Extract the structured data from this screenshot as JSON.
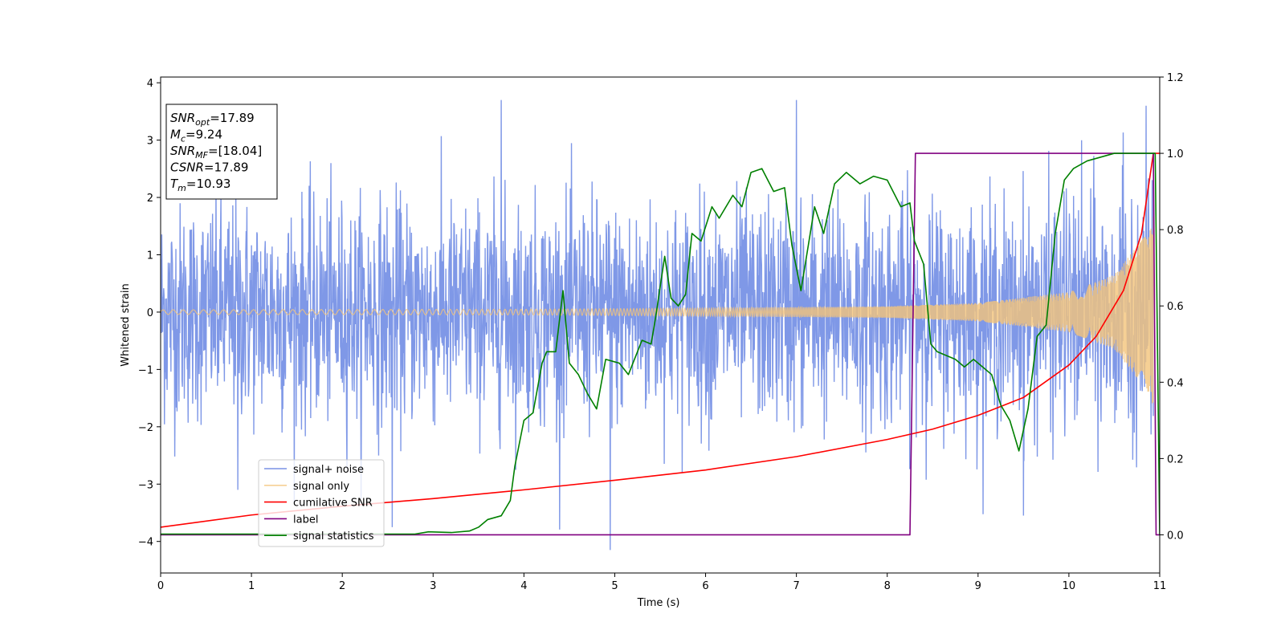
{
  "chart_data": {
    "type": "line",
    "xlabel": "Time (s)",
    "ylabel": "Whitened strain",
    "xlim": [
      0,
      11
    ],
    "ylim_left": [
      -4.55,
      4.1
    ],
    "ylim_right": [
      -0.1,
      1.2
    ],
    "x_ticks": [
      0,
      1,
      2,
      3,
      4,
      5,
      6,
      7,
      8,
      9,
      10,
      11
    ],
    "y_ticks_left": [
      -4,
      -3,
      -2,
      -1,
      0,
      1,
      2,
      3,
      4
    ],
    "y_ticks_right": [
      0.0,
      0.2,
      0.4,
      0.6,
      0.8,
      1.0,
      1.2
    ],
    "legend_position": "lower-left",
    "grid": false,
    "info_box": {
      "position": "top-left",
      "lines": [
        {
          "name": "SNR",
          "sub": "opt",
          "value": "=17.89"
        },
        {
          "name": "M",
          "sub": "c",
          "value": "=9.24"
        },
        {
          "name": "SNR",
          "sub": "MF",
          "value": "=[18.04]"
        },
        {
          "name": "CSNR",
          "sub": "",
          "value": "=17.89"
        },
        {
          "name": "T",
          "sub": "m",
          "value": "=10.93"
        }
      ]
    },
    "series": [
      {
        "name": "signal+ noise",
        "axis": "left",
        "color": "#7892e6",
        "kind": "noisy_band",
        "noise_std": 0.95,
        "clip": [
          -4.2,
          3.7
        ],
        "examples": [
          {
            "x": 0.85,
            "y": -3.1
          },
          {
            "x": 2.55,
            "y": -3.75
          },
          {
            "x": 3.75,
            "y": 3.7
          },
          {
            "x": 4.95,
            "y": -4.15
          },
          {
            "x": 7.0,
            "y": 3.7
          },
          {
            "x": 9.5,
            "y": -3.55
          },
          {
            "x": 10.85,
            "y": 3.6
          }
        ]
      },
      {
        "name": "signal only",
        "axis": "left",
        "color": "#f4c47a",
        "kind": "chirp",
        "amplitude_envelope": {
          "x": [
            0,
            4,
            6,
            8,
            9,
            10,
            10.5,
            10.9,
            10.93
          ],
          "y": [
            0.04,
            0.05,
            0.07,
            0.1,
            0.16,
            0.35,
            0.65,
            1.45,
            1.7
          ]
        }
      },
      {
        "name": "cumilative SNR",
        "axis": "right",
        "color": "#ff0000",
        "x": [
          0,
          1,
          2,
          3,
          4,
          5,
          6,
          7,
          8,
          8.5,
          9,
          9.5,
          10,
          10.3,
          10.6,
          10.8,
          10.93,
          11
        ],
        "y": [
          0.02,
          0.052,
          0.075,
          0.095,
          0.118,
          0.143,
          0.17,
          0.205,
          0.25,
          0.277,
          0.313,
          0.36,
          0.445,
          0.52,
          0.64,
          0.79,
          1.0,
          1.0
        ]
      },
      {
        "name": "label",
        "axis": "right",
        "color": "#800080",
        "x": [
          0,
          8.25,
          8.31,
          10.93,
          10.96,
          11
        ],
        "y": [
          0,
          0,
          1,
          1,
          0,
          0
        ]
      },
      {
        "name": "signal statistics",
        "axis": "right",
        "color": "#008000",
        "x": [
          0,
          2.8,
          2.95,
          3.2,
          3.4,
          3.5,
          3.6,
          3.75,
          3.85,
          3.9,
          4.0,
          4.1,
          4.2,
          4.25,
          4.35,
          4.43,
          4.5,
          4.6,
          4.7,
          4.8,
          4.9,
          5.05,
          5.15,
          5.3,
          5.4,
          5.45,
          5.55,
          5.62,
          5.7,
          5.78,
          5.85,
          5.95,
          6.07,
          6.15,
          6.3,
          6.4,
          6.5,
          6.62,
          6.75,
          6.87,
          6.95,
          7.05,
          7.2,
          7.3,
          7.42,
          7.55,
          7.7,
          7.85,
          8.0,
          8.15,
          8.25,
          8.3,
          8.4,
          8.48,
          8.55,
          8.65,
          8.75,
          8.85,
          8.95,
          9.05,
          9.15,
          9.25,
          9.35,
          9.45,
          9.55,
          9.65,
          9.75,
          9.85,
          9.95,
          10.05,
          10.2,
          10.5,
          10.7,
          10.9,
          10.95,
          11
        ],
        "y": [
          0.002,
          0.002,
          0.008,
          0.006,
          0.01,
          0.02,
          0.04,
          0.05,
          0.09,
          0.18,
          0.3,
          0.32,
          0.45,
          0.48,
          0.48,
          0.64,
          0.45,
          0.42,
          0.37,
          0.33,
          0.46,
          0.45,
          0.42,
          0.51,
          0.5,
          0.57,
          0.73,
          0.62,
          0.6,
          0.63,
          0.79,
          0.77,
          0.86,
          0.83,
          0.89,
          0.86,
          0.95,
          0.96,
          0.9,
          0.91,
          0.76,
          0.64,
          0.86,
          0.79,
          0.92,
          0.95,
          0.92,
          0.94,
          0.93,
          0.86,
          0.87,
          0.77,
          0.71,
          0.5,
          0.48,
          0.47,
          0.46,
          0.44,
          0.46,
          0.44,
          0.42,
          0.34,
          0.3,
          0.22,
          0.33,
          0.52,
          0.55,
          0.79,
          0.93,
          0.96,
          0.98,
          1.0,
          1.0,
          1.0,
          1.0,
          0.0
        ]
      }
    ]
  }
}
